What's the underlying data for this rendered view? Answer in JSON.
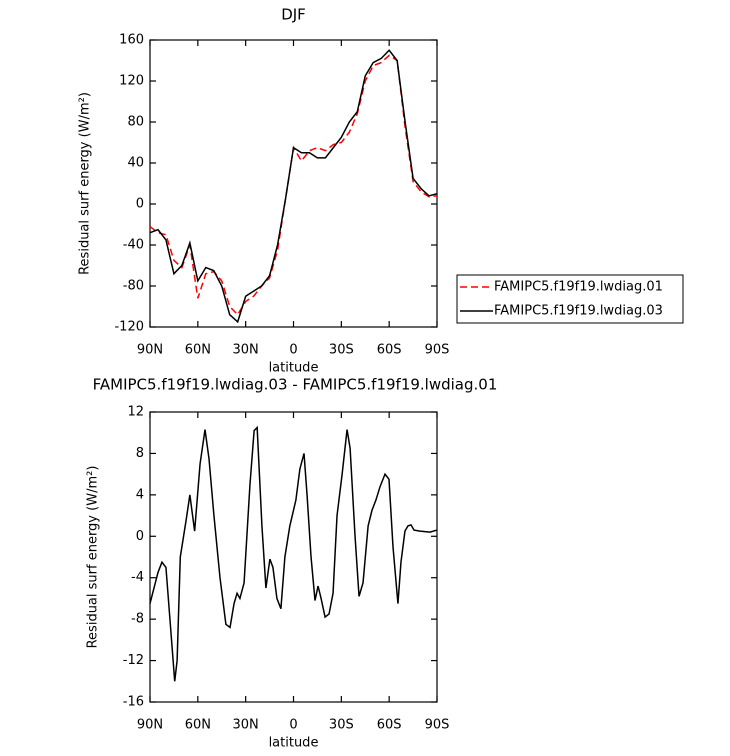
{
  "chart_data": [
    {
      "type": "line",
      "title": "DJF",
      "xlabel": "latitude",
      "ylabel": "Residual surf energy (W/m²)",
      "x": [
        90,
        85,
        80,
        75,
        70,
        65,
        60,
        55,
        50,
        45,
        40,
        35,
        30,
        25,
        20,
        15,
        10,
        5,
        0,
        -5,
        -10,
        -15,
        -20,
        -25,
        -30,
        -35,
        -40,
        -45,
        -50,
        -55,
        -60,
        -65,
        -70,
        -75,
        -80,
        -85,
        -90
      ],
      "series": [
        {
          "name": "FAMIPC5.f19f19.lwdiag.01",
          "color": "#ff0000",
          "line_style": "dashed",
          "values": [
            -22,
            -28,
            -30,
            -55,
            -62,
            -40,
            -92,
            -68,
            -66,
            -75,
            -100,
            -108,
            -95,
            -90,
            -80,
            -72,
            -45,
            5,
            55,
            42,
            52,
            55,
            52,
            58,
            60,
            70,
            88,
            120,
            135,
            138,
            145,
            140,
            75,
            22,
            12,
            7,
            8
          ]
        },
        {
          "name": "FAMIPC5.f19f19.lwdiag.03",
          "color": "#000000",
          "line_style": "solid",
          "values": [
            -28,
            -25,
            -35,
            -68,
            -60,
            -38,
            -75,
            -62,
            -65,
            -80,
            -108,
            -115,
            -90,
            -85,
            -80,
            -70,
            -40,
            5,
            55,
            50,
            50,
            45,
            45,
            55,
            65,
            80,
            90,
            125,
            138,
            142,
            150,
            140,
            80,
            25,
            15,
            8,
            10
          ]
        }
      ],
      "xlim": [
        90,
        -90
      ],
      "xticks": [
        {
          "value": 90,
          "label": "90N"
        },
        {
          "value": 60,
          "label": "60N"
        },
        {
          "value": 30,
          "label": "30N"
        },
        0,
        {
          "value": -30,
          "label": "30S"
        },
        {
          "value": -60,
          "label": "60S"
        },
        {
          "value": -90,
          "label": "90S"
        }
      ],
      "ylim": [
        -120,
        160
      ],
      "yticks": [
        -120,
        -80,
        -40,
        0,
        40,
        80,
        120,
        160
      ],
      "legend": "right"
    },
    {
      "type": "line",
      "title": "FAMIPC5.f19f19.lwdiag.03 - FAMIPC5.f19f19.lwdiag.01",
      "xlabel": "latitude",
      "ylabel": "Residual surf energy (W/m²)",
      "x": [
        90,
        85,
        82.5,
        80,
        77,
        74.5,
        73,
        71,
        67.4,
        65,
        62,
        58.6,
        55.5,
        53,
        49.9,
        46.1,
        42.4,
        39.8,
        37.3,
        35.4,
        33.6,
        31,
        27.3,
        24.7,
        22.8,
        19.8,
        17.3,
        14.8,
        12.9,
        10.4,
        7.9,
        5.4,
        2.3,
        -1.5,
        -4,
        -6.6,
        -8.5,
        -11,
        -13.5,
        -15.4,
        -17.3,
        -19.8,
        -22.3,
        -24.8,
        -27.3,
        -30.5,
        -33.6,
        -35.5,
        -38.6,
        -41.1,
        -43.6,
        -46.8,
        -49.2,
        -51.7,
        -54.3,
        -57.4,
        -59.9,
        -62.4,
        -65.5,
        -67.4,
        -69.9,
        -71.8,
        -73.7,
        -75.6,
        -79.3,
        -85.6,
        -90
      ],
      "color": "#000000",
      "values": [
        -6.5,
        -3.5,
        -2.5,
        -3,
        -9,
        -14,
        -12,
        -2,
        1.5,
        4,
        0.5,
        7,
        10.3,
        7.5,
        2,
        -4,
        -8.5,
        -8.8,
        -6.5,
        -5.5,
        -6,
        -4.5,
        5,
        10.2,
        10.5,
        1,
        -5,
        -2.2,
        -3,
        -6,
        -7,
        -2,
        1,
        3.5,
        6.5,
        8,
        4,
        -2,
        -6.2,
        -4.8,
        -6,
        -7.8,
        -7.5,
        -5.5,
        2,
        6,
        10.3,
        8.5,
        0,
        -5.8,
        -4.5,
        1,
        2.5,
        3.5,
        4.8,
        6,
        5.5,
        -1,
        -6.5,
        -2.5,
        0.5,
        1,
        1.1,
        0.6,
        0.5,
        0.4,
        0.6
      ],
      "xlim": [
        90,
        -90
      ],
      "xticks": [
        {
          "value": 90,
          "label": "90N"
        },
        {
          "value": 60,
          "label": "60N"
        },
        {
          "value": 30,
          "label": "30N"
        },
        0,
        {
          "value": -30,
          "label": "30S"
        },
        {
          "value": -60,
          "label": "60S"
        },
        {
          "value": -90,
          "label": "90S"
        }
      ],
      "ylim": [
        -16,
        12
      ],
      "yticks": [
        -16,
        -12,
        -8,
        -4,
        0,
        4,
        8,
        12
      ]
    }
  ]
}
